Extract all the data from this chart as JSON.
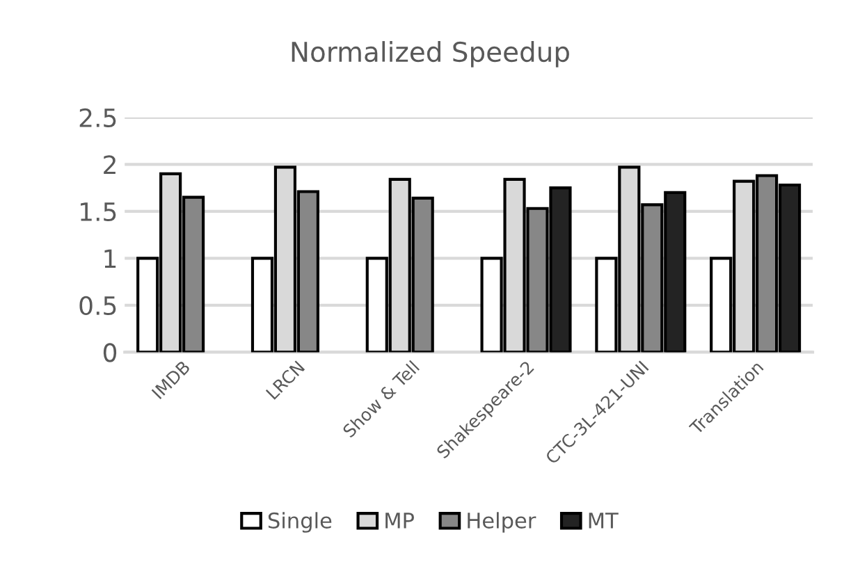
{
  "chart_data": {
    "type": "bar",
    "title": "Normalized Speedup",
    "categories": [
      "IMDB",
      "LRCN",
      "Show & Tell",
      "Shakespeare-2",
      "CTC-3L-421-UNI",
      "Translation"
    ],
    "series": [
      {
        "name": "Single",
        "color": "#ffffff",
        "values": [
          1,
          1,
          1,
          1,
          1,
          1
        ]
      },
      {
        "name": "MP",
        "color": "#d9d9d9",
        "values": [
          1.9,
          1.97,
          1.84,
          1.84,
          1.97,
          1.82
        ]
      },
      {
        "name": "Helper",
        "color": "#878787",
        "values": [
          1.65,
          1.71,
          1.64,
          1.53,
          1.57,
          1.88
        ]
      },
      {
        "name": "MT",
        "color": "#232323",
        "values": [
          null,
          null,
          null,
          1.75,
          1.7,
          1.78
        ]
      }
    ],
    "ylim": [
      0,
      2.5
    ],
    "yticks": [
      0,
      0.5,
      1,
      1.5,
      2,
      2.5
    ],
    "grid": "y",
    "legend": "bottom"
  }
}
